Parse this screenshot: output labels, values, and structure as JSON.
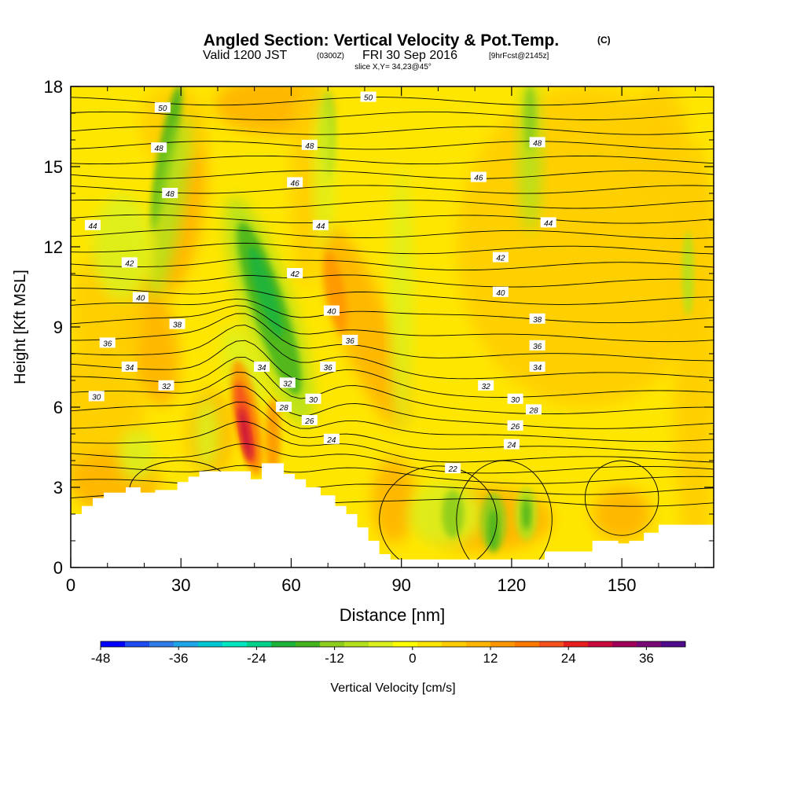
{
  "chart_data": {
    "type": "heatmap",
    "title": "Angled Section: Vertical Velocity & Pot.Temp.",
    "title_unit": "(C)",
    "subtitle_valid": "Valid 1200 JST",
    "subtitle_utc": "(0300Z)",
    "subtitle_date": "FRI 30 Sep 2016",
    "subtitle_fcst": "[9hrFcst@2145z]",
    "slice_label": "slice X,Y= 34,23@45°",
    "xlabel": "Distance [nm]",
    "ylabel": "Height [Kft MSL]",
    "xlim": [
      0,
      175
    ],
    "ylim": [
      0,
      18
    ],
    "x_ticks": [
      0,
      30,
      60,
      90,
      120,
      150
    ],
    "y_ticks": [
      0,
      3,
      6,
      9,
      12,
      15,
      18
    ],
    "colorbar": {
      "label": "Vertical Velocity [cm/s]",
      "min": -48,
      "max": 42,
      "step": 3.75,
      "ticks": [
        -48,
        -36,
        -24,
        -12,
        0,
        12,
        24,
        36
      ],
      "colors": [
        "#0000ff",
        "#1e4cf0",
        "#2f7be8",
        "#1ea6e8",
        "#00c8d2",
        "#00e6c0",
        "#00d28c",
        "#1eb43c",
        "#46b41e",
        "#8ccd1e",
        "#b4e11e",
        "#dcf01e",
        "#ffff00",
        "#ffe600",
        "#ffcd00",
        "#ffb400",
        "#ff9600",
        "#ff7800",
        "#f5501e",
        "#e61e1e",
        "#c80a3c",
        "#a0005a",
        "#780a78",
        "#500a8c"
      ]
    },
    "theta_contour_labels": [
      {
        "x": 25,
        "y": 17.2,
        "label": "50"
      },
      {
        "x": 81,
        "y": 17.6,
        "label": "50"
      },
      {
        "x": 24,
        "y": 15.7,
        "label": "48"
      },
      {
        "x": 65,
        "y": 15.8,
        "label": "48"
      },
      {
        "x": 127,
        "y": 15.9,
        "label": "48"
      },
      {
        "x": 27,
        "y": 14.0,
        "label": "48"
      },
      {
        "x": 61,
        "y": 14.4,
        "label": "46"
      },
      {
        "x": 111,
        "y": 14.6,
        "label": "46"
      },
      {
        "x": 6,
        "y": 12.8,
        "label": "44"
      },
      {
        "x": 68,
        "y": 12.8,
        "label": "44"
      },
      {
        "x": 130,
        "y": 12.9,
        "label": "44"
      },
      {
        "x": 16,
        "y": 11.4,
        "label": "42"
      },
      {
        "x": 61,
        "y": 11.0,
        "label": "42"
      },
      {
        "x": 117,
        "y": 11.6,
        "label": "42"
      },
      {
        "x": 19,
        "y": 10.1,
        "label": "40"
      },
      {
        "x": 71,
        "y": 9.6,
        "label": "40"
      },
      {
        "x": 117,
        "y": 10.3,
        "label": "40"
      },
      {
        "x": 29,
        "y": 9.1,
        "label": "38"
      },
      {
        "x": 127,
        "y": 9.3,
        "label": "38"
      },
      {
        "x": 10,
        "y": 8.4,
        "label": "36"
      },
      {
        "x": 76,
        "y": 8.5,
        "label": "36"
      },
      {
        "x": 127,
        "y": 8.3,
        "label": "36"
      },
      {
        "x": 16,
        "y": 7.5,
        "label": "34"
      },
      {
        "x": 52,
        "y": 7.5,
        "label": "34"
      },
      {
        "x": 70,
        "y": 7.5,
        "label": "36"
      },
      {
        "x": 127,
        "y": 7.5,
        "label": "34"
      },
      {
        "x": 7,
        "y": 6.4,
        "label": "30"
      },
      {
        "x": 26,
        "y": 6.8,
        "label": "32"
      },
      {
        "x": 59,
        "y": 6.9,
        "label": "32"
      },
      {
        "x": 113,
        "y": 6.8,
        "label": "32"
      },
      {
        "x": 66,
        "y": 6.3,
        "label": "30"
      },
      {
        "x": 121,
        "y": 6.3,
        "label": "30"
      },
      {
        "x": 58,
        "y": 6.0,
        "label": "28"
      },
      {
        "x": 126,
        "y": 5.9,
        "label": "28"
      },
      {
        "x": 65,
        "y": 5.5,
        "label": "26"
      },
      {
        "x": 121,
        "y": 5.3,
        "label": "26"
      },
      {
        "x": 71,
        "y": 4.8,
        "label": "24"
      },
      {
        "x": 120,
        "y": 4.6,
        "label": "24"
      },
      {
        "x": 104,
        "y": 3.7,
        "label": "22"
      }
    ],
    "terrain_profile": [
      [
        0,
        2
      ],
      [
        3,
        2
      ],
      [
        3,
        2.3
      ],
      [
        6,
        2.3
      ],
      [
        6,
        2.6
      ],
      [
        9,
        2.6
      ],
      [
        9,
        2.8
      ],
      [
        15,
        2.8
      ],
      [
        15,
        3.0
      ],
      [
        19,
        3.0
      ],
      [
        19,
        2.8
      ],
      [
        23,
        2.8
      ],
      [
        23,
        2.9
      ],
      [
        29,
        2.9
      ],
      [
        29,
        3.2
      ],
      [
        32,
        3.2
      ],
      [
        32,
        3.4
      ],
      [
        35,
        3.4
      ],
      [
        35,
        3.6
      ],
      [
        49,
        3.6
      ],
      [
        49,
        3.3
      ],
      [
        52,
        3.3
      ],
      [
        52,
        3.9
      ],
      [
        58,
        3.9
      ],
      [
        58,
        3.5
      ],
      [
        61,
        3.5
      ],
      [
        61,
        3.3
      ],
      [
        64,
        3.3
      ],
      [
        64,
        3.0
      ],
      [
        68,
        3.0
      ],
      [
        68,
        2.7
      ],
      [
        72,
        2.7
      ],
      [
        72,
        2.3
      ],
      [
        75,
        2.3
      ],
      [
        75,
        2.0
      ],
      [
        78,
        2.0
      ],
      [
        78,
        1.5
      ],
      [
        81,
        1.5
      ],
      [
        81,
        1.0
      ],
      [
        84,
        1.0
      ],
      [
        84,
        0.5
      ],
      [
        87,
        0.5
      ],
      [
        87,
        0.3
      ],
      [
        129,
        0.3
      ],
      [
        129,
        0.6
      ],
      [
        142,
        0.6
      ],
      [
        142,
        1.0
      ],
      [
        149,
        1.0
      ],
      [
        149,
        0.9
      ],
      [
        152,
        0.9
      ],
      [
        152,
        1.0
      ],
      [
        156,
        1.0
      ],
      [
        156,
        1.3
      ],
      [
        160,
        1.3
      ],
      [
        160,
        1.6
      ],
      [
        175,
        1.6
      ]
    ]
  }
}
